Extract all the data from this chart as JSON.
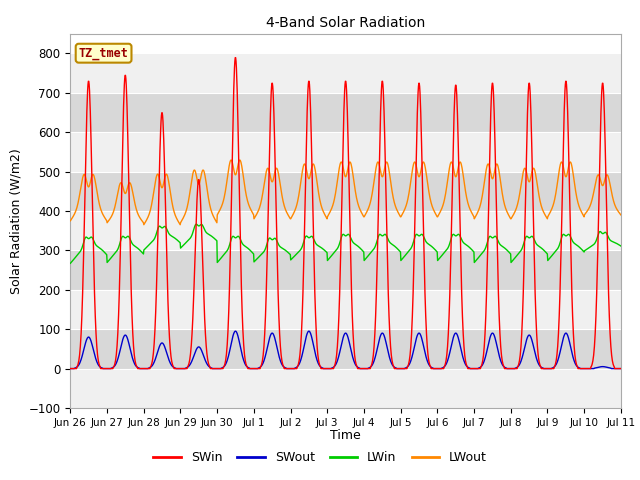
{
  "title": "4-Band Solar Radiation",
  "xlabel": "Time",
  "ylabel": "Solar Radiation (W/m2)",
  "ylim": [
    -100,
    850
  ],
  "yticks": [
    -100,
    0,
    100,
    200,
    300,
    400,
    500,
    600,
    700,
    800
  ],
  "legend_label": "TZ_tmet",
  "series_colors": {
    "SWin": "#ff0000",
    "SWout": "#0000cc",
    "LWin": "#00cc00",
    "LWout": "#ff8800"
  },
  "background_color": "#ffffff",
  "plot_bg_light": "#f0f0f0",
  "plot_bg_dark": "#d8d8d8",
  "grid_color": "#ffffff",
  "n_days": 15,
  "dt_hours": 0.25,
  "x_labels": [
    "Jun 26",
    "Jun 27",
    "Jun 28",
    "Jun 29",
    "Jun 30",
    "Jul 1",
    "Jul 2",
    "Jul 3",
    "Jul 4",
    "Jul 5",
    "Jul 6",
    "Jul 7",
    "Jul 8",
    "Jul 9",
    "Jul 10",
    "Jul 11"
  ]
}
